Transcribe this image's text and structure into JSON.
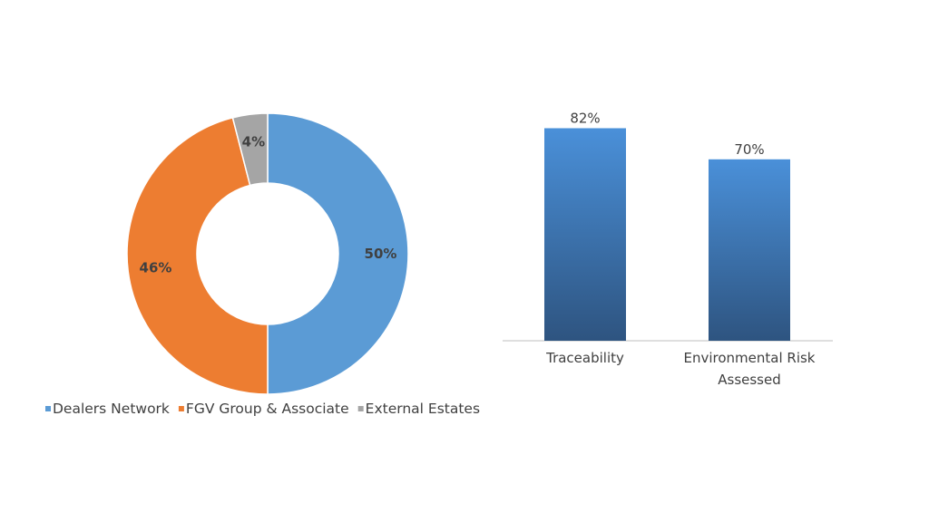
{
  "chart_data": [
    {
      "type": "pie",
      "donut": true,
      "title": "",
      "categories": [
        "Dealers Network",
        "FGV Group & Associate",
        "External Estates"
      ],
      "values": [
        50,
        46,
        4
      ],
      "labels": [
        "50%",
        "46%",
        "4%"
      ],
      "colors": [
        "#5B9BD5",
        "#ED7D31",
        "#A5A5A5"
      ],
      "legend": "bottom"
    },
    {
      "type": "bar",
      "title": "",
      "categories": [
        "Traceability",
        "Environmental Risk Assessed"
      ],
      "category_lines": [
        [
          "Traceability"
        ],
        [
          "Environmental Risk",
          "Assessed"
        ]
      ],
      "values": [
        82,
        70
      ],
      "labels": [
        "82%",
        "70%"
      ],
      "ylim": [
        0,
        100
      ],
      "gradient": [
        "#4A90D9",
        "#2E5480"
      ],
      "grid": false,
      "legend": "none"
    }
  ]
}
